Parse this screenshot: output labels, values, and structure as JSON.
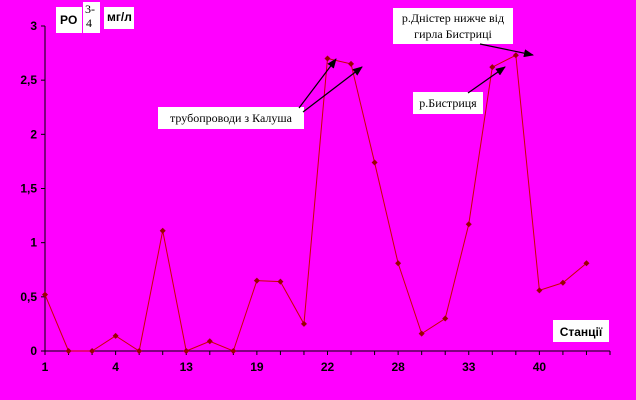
{
  "chart_data": {
    "type": "line",
    "ylabel_parts": {
      "main": "PO",
      "sup1": "3-",
      "sup2": "4",
      "unit": "мг/л"
    },
    "xlabel": "Станції",
    "ylim": [
      0,
      3
    ],
    "yticks": [
      "0",
      "0,5",
      "1",
      "1,5",
      "2",
      "2,5",
      "3"
    ],
    "x_tick_labels": [
      {
        "pos": 1,
        "label": "1"
      },
      {
        "pos": 4,
        "label": "4"
      },
      {
        "pos": 7,
        "label": "13"
      },
      {
        "pos": 10,
        "label": "19"
      },
      {
        "pos": 13,
        "label": "22"
      },
      {
        "pos": 16,
        "label": "28"
      },
      {
        "pos": 19,
        "label": "33"
      },
      {
        "pos": 22,
        "label": "40"
      }
    ],
    "x_count": 24,
    "values": [
      0.52,
      0.0,
      0.0,
      0.14,
      0.0,
      1.11,
      0.0,
      0.09,
      0.0,
      0.65,
      0.64,
      0.25,
      2.7,
      2.65,
      1.74,
      0.81,
      0.16,
      0.3,
      1.17,
      2.62,
      2.73,
      0.56,
      0.63,
      0.81
    ],
    "color": "#cc0000",
    "grid": false,
    "annotations": [
      {
        "id": "pipes",
        "lines": [
          "трубопроводи з Калуша"
        ]
      },
      {
        "id": "bystrytsia",
        "lines": [
          "р.Бистриця"
        ]
      },
      {
        "id": "dnister",
        "lines": [
          "р.Дністер нижче від",
          "гирла Бистриці"
        ]
      }
    ]
  }
}
